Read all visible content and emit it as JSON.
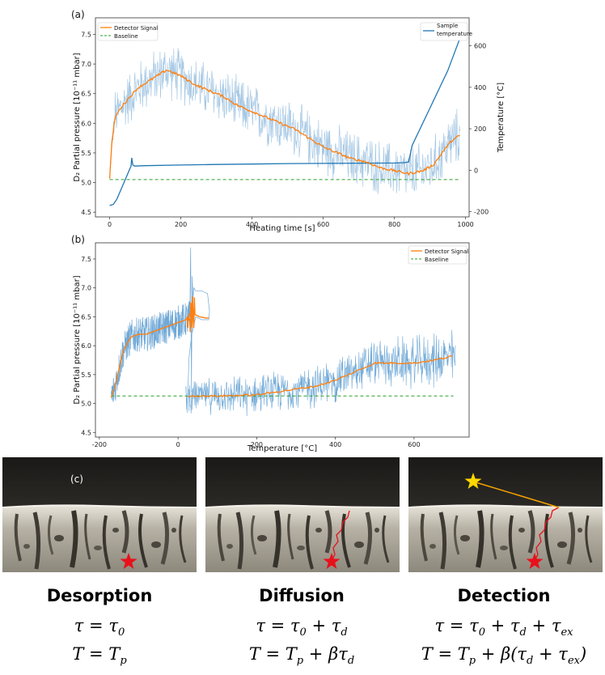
{
  "chart_data": [
    {
      "panel_label": "(a)",
      "type": "line",
      "xlabel": "Heating time [s]",
      "ylabel": "D₂ Partial pressure [10⁻¹¹ mbar]",
      "y2label": "Temperature [°C]",
      "xlim": [
        -40,
        1010
      ],
      "ylim": [
        4.42,
        7.78
      ],
      "y2lim": [
        -225,
        735
      ],
      "xticks": [
        0,
        200,
        400,
        600,
        800,
        1000
      ],
      "yticks": [
        4.5,
        5.0,
        5.5,
        6.0,
        6.5,
        7.0,
        7.5
      ],
      "y2ticks": [
        -200,
        0,
        200,
        400,
        600
      ],
      "legend_left": [
        {
          "name": "Detector Signal",
          "color": "#ff7f0e",
          "style": "solid"
        },
        {
          "name": "Baseline",
          "color": "#2ca02c",
          "style": "dashed"
        }
      ],
      "legend_right": [
        {
          "name": "Sample temperature",
          "color": "#1f77b4",
          "style": "solid"
        }
      ],
      "series": [
        {
          "name": "Detector Signal",
          "axis": "left",
          "x": [
            0,
            5,
            15,
            30,
            50,
            80,
            120,
            160,
            200,
            240,
            280,
            320,
            360,
            400,
            440,
            480,
            520,
            560,
            600,
            640,
            680,
            720,
            760,
            800,
            840,
            880,
            910,
            940,
            960,
            985
          ],
          "y": [
            5.05,
            5.6,
            6.1,
            6.25,
            6.4,
            6.6,
            6.75,
            6.9,
            6.8,
            6.65,
            6.55,
            6.45,
            6.3,
            6.2,
            6.1,
            6.0,
            5.9,
            5.75,
            5.6,
            5.5,
            5.4,
            5.35,
            5.25,
            5.2,
            5.15,
            5.2,
            5.3,
            5.55,
            5.7,
            5.8
          ]
        },
        {
          "name": "Raw signal",
          "axis": "left",
          "color": "#a6c8e4",
          "noise_amplitude": 0.45
        },
        {
          "name": "Baseline",
          "axis": "left",
          "x": [
            0,
            985
          ],
          "y": [
            5.05,
            5.05
          ]
        },
        {
          "name": "Sample temperature",
          "axis": "right",
          "x": [
            0,
            10,
            20,
            30,
            40,
            50,
            55,
            60,
            62,
            65,
            70,
            100,
            200,
            300,
            400,
            500,
            600,
            700,
            800,
            830,
            840,
            850,
            900,
            950,
            985
          ],
          "y": [
            -170,
            -165,
            -140,
            -100,
            -60,
            -20,
            0,
            20,
            60,
            25,
            20,
            22,
            25,
            28,
            30,
            32,
            33,
            34,
            35,
            37,
            40,
            120,
            300,
            480,
            640
          ]
        }
      ]
    },
    {
      "panel_label": "(b)",
      "type": "line",
      "xlabel": "Temperature [°C]",
      "ylabel": "D₂ Partial pressure [10⁻¹¹ mbar]",
      "xlim": [
        -210,
        740
      ],
      "ylim": [
        4.42,
        7.78
      ],
      "xticks": [
        -200,
        0,
        200,
        400,
        600
      ],
      "yticks": [
        4.5,
        5.0,
        5.5,
        6.0,
        6.5,
        7.0,
        7.5
      ],
      "legend": [
        {
          "name": "Detector Signal",
          "color": "#ff7f0e",
          "style": "solid"
        },
        {
          "name": "Baseline",
          "color": "#2ca02c",
          "style": "dashed"
        }
      ],
      "series": [
        {
          "name": "Detector Signal",
          "x": [
            -170,
            -160,
            -150,
            -140,
            -120,
            -100,
            -80,
            -60,
            -40,
            -20,
            0,
            20,
            30,
            40,
            55,
            70,
            80
          ],
          "y": [
            5.1,
            5.3,
            5.6,
            5.9,
            6.15,
            6.2,
            6.2,
            6.25,
            6.3,
            6.35,
            6.4,
            6.45,
            6.5,
            6.55,
            6.5,
            6.48,
            6.48
          ]
        },
        {
          "name": "Detector Signal (after)",
          "x": [
            25,
            100,
            200,
            300,
            350,
            400,
            450,
            500,
            550,
            600,
            650,
            700
          ],
          "y": [
            5.13,
            5.13,
            5.15,
            5.25,
            5.3,
            5.4,
            5.55,
            5.7,
            5.7,
            5.7,
            5.75,
            5.82
          ]
        },
        {
          "name": "Baseline",
          "x": [
            -170,
            700
          ],
          "y": [
            5.13,
            5.13
          ]
        }
      ]
    }
  ],
  "panel_c_label": "(c)",
  "stages": [
    {
      "title": "Desorption",
      "eq1": "τ = τ₀",
      "eq2": "T = Tₚ"
    },
    {
      "title": "Diffusion",
      "eq1": "τ = τ₀ + τ_d",
      "eq2": "T = Tₚ + βτ_d"
    },
    {
      "title": "Detection",
      "eq1": "τ = τ₀ + τ_d + τ_ex",
      "eq2": "T = Tₚ + β(τ_d + τ_ex)"
    }
  ],
  "stage_eq_parts": [
    {
      "a1": "τ = τ",
      "s1": "0",
      "a2": "T = T",
      "s2": "p"
    },
    {
      "a1": "τ = τ",
      "s1": "0",
      "b1": " + τ",
      "t1": "d",
      "a2": "T = T",
      "s2": "p",
      "b2": " + βτ",
      "t2": "d"
    },
    {
      "a1": "τ = τ",
      "s1": "0",
      "b1": " + τ",
      "t1": "d",
      "c1": " + τ",
      "u1": "ex",
      "a2": "T = T",
      "s2": "p",
      "b2": " + β(τ",
      "t2": "d",
      "c2": " + τ",
      "u2": "ex",
      "d2": ")"
    }
  ],
  "colors": {
    "signal": "#ff7f0e",
    "raw": "#a6c8e4",
    "temperature": "#1f77b4",
    "baseline": "#2ca02c",
    "star_red": "#e8101a",
    "star_yellow": "#ffd800"
  }
}
